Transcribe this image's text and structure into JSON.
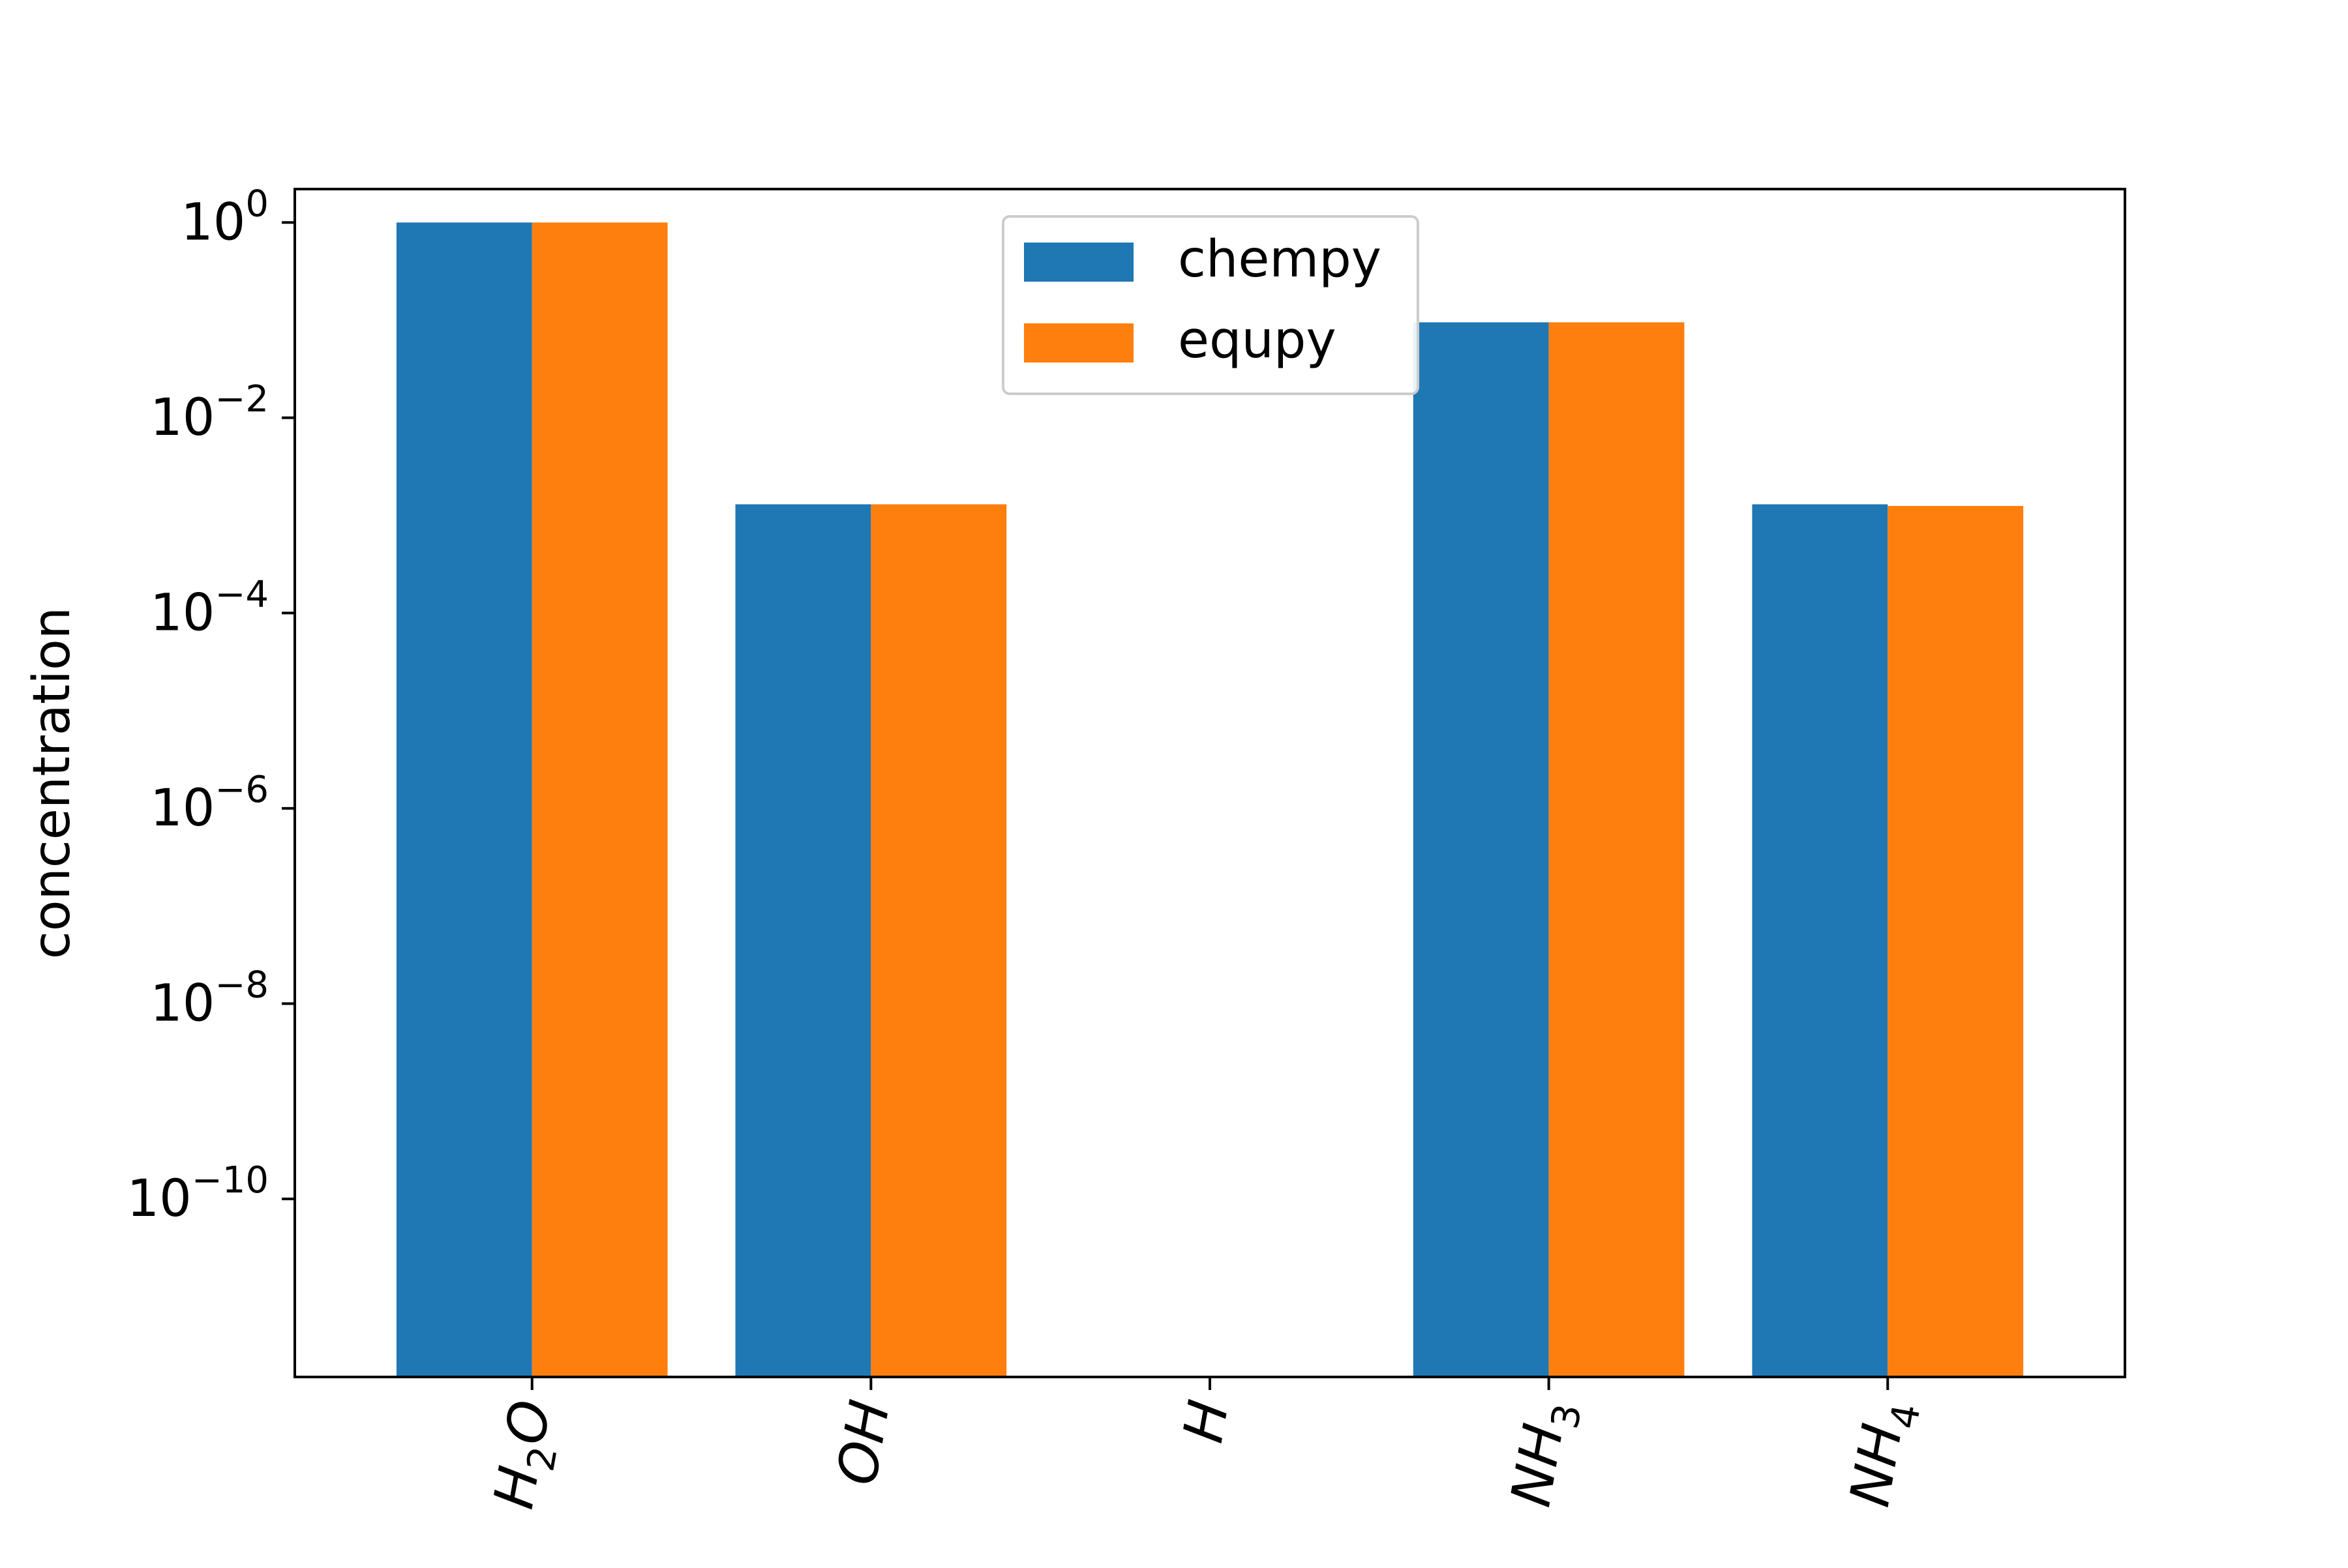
{
  "chart_data": {
    "type": "bar",
    "categories": [
      {
        "base": "H",
        "sub": "2",
        "tail": "O"
      },
      {
        "base": "OH",
        "sub": "",
        "tail": ""
      },
      {
        "base": "H",
        "sub": "",
        "tail": ""
      },
      {
        "base": "NH",
        "sub": "3",
        "tail": ""
      },
      {
        "base": "NH",
        "sub": "4",
        "tail": ""
      }
    ],
    "series": [
      {
        "name": "chempy",
        "color": "#1f77b4",
        "values": [
          1.0,
          0.0013,
          1.4e-12,
          0.095,
          0.0013
        ]
      },
      {
        "name": "equpy",
        "color": "#ff7f0e",
        "values": [
          1.0,
          0.0013,
          1.3e-12,
          0.095,
          0.00125
        ]
      }
    ],
    "y_scale": "log",
    "ylim": [
      1.5e-12,
      2.2
    ],
    "yticks": [
      {
        "base": "10",
        "exp": "0"
      },
      {
        "base": "10",
        "exp": "−2"
      },
      {
        "base": "10",
        "exp": "−4"
      },
      {
        "base": "10",
        "exp": "−6"
      },
      {
        "base": "10",
        "exp": "−8"
      },
      {
        "base": "10",
        "exp": "−10"
      }
    ],
    "ytick_exponents": [
      0,
      -2,
      -4,
      -6,
      -8,
      -10
    ],
    "ylabel": "concentration",
    "xlabel": "",
    "title": "",
    "legend_position": "upper-center",
    "grid": false
  }
}
